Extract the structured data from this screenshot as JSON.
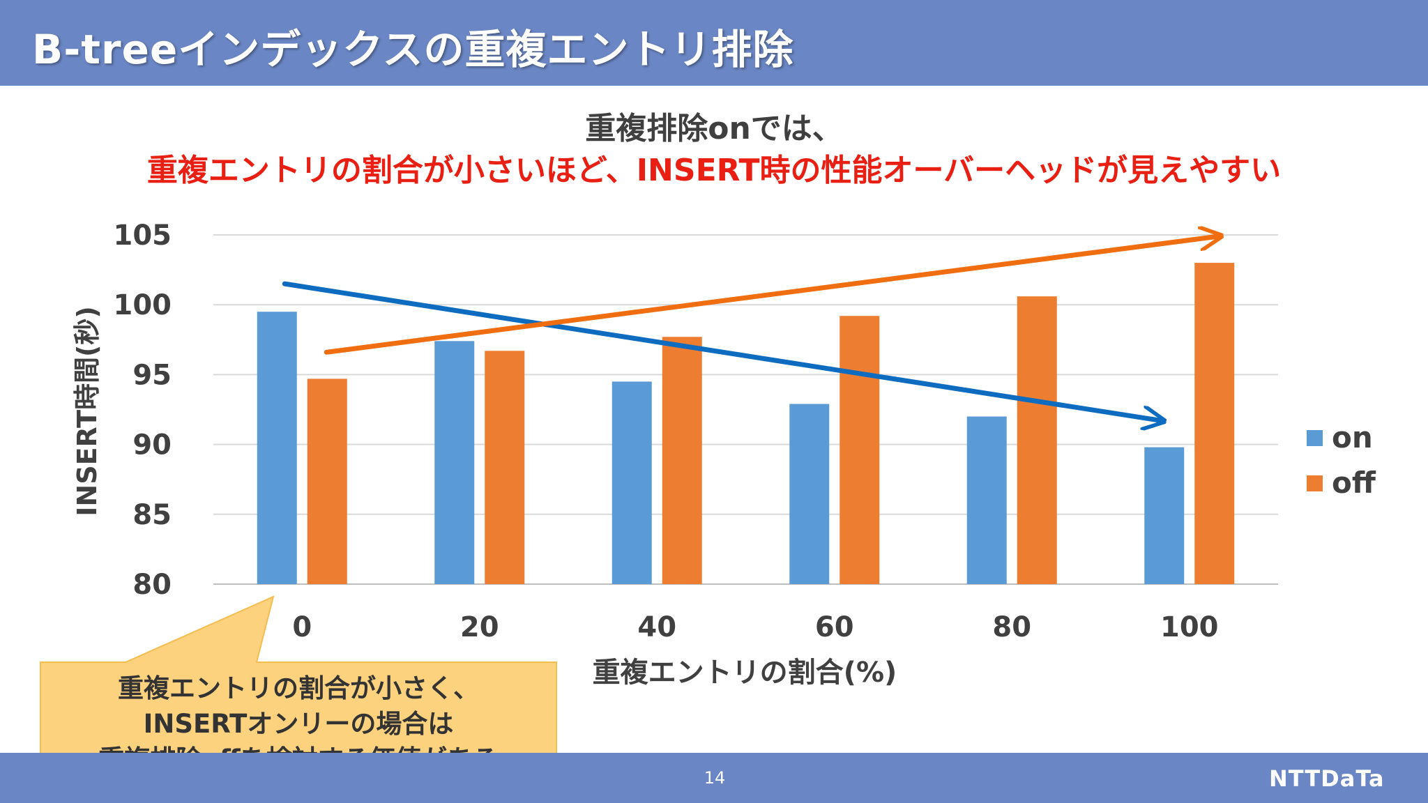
{
  "header": {
    "title": "B-treeインデックスの重複エントリ排除"
  },
  "subtitle": {
    "line1": "重複排除onでは、",
    "line2": "重複エントリの割合が小さいほど、INSERT時の性能オーバーヘッドが見えやすい"
  },
  "callout": {
    "line1": "重複エントリの割合が小さく、",
    "line2": "INSERTオンリーの場合は",
    "line3": "重複排除offを検討する価値がある"
  },
  "footer": {
    "page_number": "14",
    "logo": "NTTDaTa"
  },
  "colors": {
    "on": "#5b9bd5",
    "off": "#ed7d31",
    "trend_on": "#0e6cc0",
    "trend_off": "#f06d10",
    "header": "#6a86c4"
  },
  "chart_data": {
    "type": "bar",
    "title": "",
    "xlabel": "重複エントリの割合(%)",
    "ylabel": "INSERT時間(秒)",
    "categories": [
      "0",
      "20",
      "40",
      "60",
      "80",
      "100"
    ],
    "series": [
      {
        "name": "on",
        "values": [
          99.5,
          97.4,
          94.5,
          92.9,
          92.0,
          89.8
        ]
      },
      {
        "name": "off",
        "values": [
          94.7,
          96.7,
          97.7,
          99.2,
          100.6,
          103.0
        ]
      }
    ],
    "ylim": [
      80,
      105
    ],
    "yticks": [
      "80",
      "85",
      "90",
      "95",
      "100",
      "105"
    ],
    "grid": true,
    "legend": "right",
    "trend_arrows": [
      {
        "series": "on",
        "from": {
          "category": "0",
          "value": 101.5
        },
        "to": {
          "category": "100",
          "value": 91.7
        }
      },
      {
        "series": "off",
        "from": {
          "category": "0",
          "value": 96.6
        },
        "to": {
          "category": "100",
          "value": 104.9
        }
      }
    ]
  }
}
